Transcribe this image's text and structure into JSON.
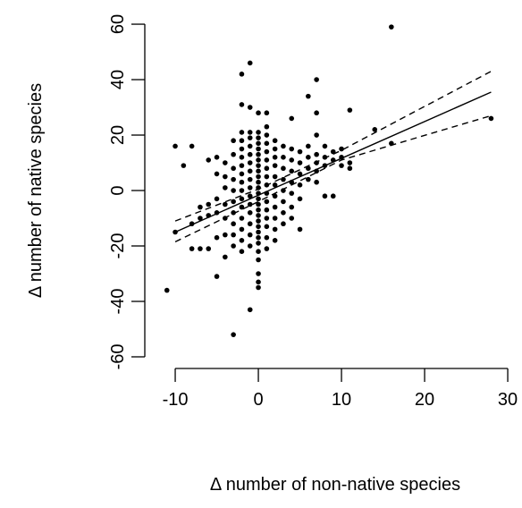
{
  "chart_data": {
    "type": "scatter",
    "xlabel": "Δ number of non-native species",
    "ylabel": "Δ number of native species",
    "xlim": [
      -13.66,
      31.5
    ],
    "ylim": [
      -64.2,
      65.5
    ],
    "xticks": [
      -10,
      0,
      10,
      20,
      30
    ],
    "yticks": [
      -60,
      -40,
      -20,
      0,
      20,
      40,
      60
    ],
    "color": "#000000",
    "x": [
      0,
      0,
      0,
      0,
      0,
      0,
      0,
      0,
      0,
      0,
      0,
      0,
      0,
      0,
      0,
      0,
      0,
      0,
      0,
      0,
      0,
      0,
      0,
      0,
      0,
      0,
      0,
      1,
      1,
      1,
      1,
      1,
      1,
      1,
      1,
      1,
      1,
      1,
      1,
      1,
      1,
      1,
      1,
      -1,
      -1,
      -1,
      -1,
      -1,
      -1,
      -1,
      -1,
      -1,
      -1,
      -1,
      -1,
      -1,
      -1,
      -1,
      -1,
      -1,
      2,
      2,
      2,
      2,
      2,
      2,
      2,
      2,
      2,
      2,
      2,
      -2,
      -2,
      -2,
      -2,
      -2,
      -2,
      -2,
      -2,
      -2,
      -2,
      -2,
      -2,
      -2,
      -2,
      -2,
      -2,
      3,
      3,
      3,
      3,
      3,
      3,
      3,
      3,
      -3,
      -3,
      -3,
      -3,
      -3,
      -3,
      -3,
      -3,
      -3,
      -3,
      -3,
      4,
      4,
      4,
      4,
      4,
      4,
      4,
      4,
      -4,
      -4,
      -4,
      -4,
      -4,
      -4,
      -4,
      5,
      5,
      5,
      5,
      5,
      5,
      -5,
      -5,
      -5,
      -5,
      -5,
      -5,
      6,
      6,
      6,
      6,
      6,
      -6,
      -6,
      -6,
      -6,
      7,
      7,
      7,
      7,
      7,
      7,
      7,
      -7,
      -7,
      -7,
      8,
      8,
      8,
      8,
      -8,
      -8,
      -8,
      9,
      9,
      9,
      -9,
      10,
      10,
      10,
      -10,
      -10,
      11,
      11,
      11,
      -11,
      14,
      16,
      16,
      28
    ],
    "values": [
      -25,
      -22,
      -19,
      -17,
      -15,
      -13,
      -11,
      -9,
      -7,
      -5,
      -3,
      -1,
      1,
      3,
      5,
      7,
      9,
      11,
      13,
      15,
      17,
      19,
      21,
      -30,
      -33,
      -35,
      28,
      -21,
      -17,
      -13,
      -10,
      -7,
      -4,
      -1,
      2,
      5,
      8,
      11,
      14,
      17,
      20,
      23,
      28,
      -20,
      -16,
      -12,
      -8,
      -5,
      -2,
      1,
      4,
      7,
      10,
      13,
      16,
      19,
      21,
      30,
      46,
      -43,
      -18,
      -14,
      -10,
      -6,
      -2,
      2,
      5,
      9,
      12,
      15,
      18,
      -22,
      -18,
      -14,
      -10,
      -6,
      -3,
      0,
      3,
      6,
      9,
      12,
      15,
      18,
      21,
      31,
      42,
      -12,
      -8,
      -4,
      0,
      4,
      8,
      12,
      16,
      -20,
      -16,
      -12,
      -8,
      -4,
      0,
      4,
      8,
      13,
      18,
      -52,
      -10,
      -6,
      -1,
      3,
      7,
      11,
      15,
      26,
      -24,
      -16,
      -10,
      -5,
      1,
      5,
      10,
      -14,
      -3,
      2,
      6,
      10,
      14,
      -31,
      -17,
      -8,
      -3,
      6,
      12,
      4,
      8,
      12,
      16,
      34,
      -21,
      -9,
      -5,
      11,
      3,
      7,
      10,
      13,
      20,
      28,
      40,
      -21,
      -10,
      -6,
      -2,
      9,
      12,
      16,
      -21,
      -12,
      16,
      -2,
      11,
      14,
      9,
      9,
      12,
      15,
      -15,
      16,
      8,
      10,
      29,
      -36,
      22,
      17,
      59,
      26
    ],
    "lines": [
      {
        "x": [
          -10,
          0,
          10,
          28
        ],
        "values": [
          -15,
          -1.7,
          11.6,
          35.5
        ],
        "linestyle": "solid"
      },
      {
        "x": [
          -10,
          0,
          10,
          28
        ],
        "values": [
          -11,
          0.5,
          14.5,
          43
        ],
        "linestyle": "dashed"
      },
      {
        "x": [
          -10,
          0,
          10,
          28
        ],
        "values": [
          -18.5,
          -4,
          11,
          27
        ],
        "linestyle": "dashed"
      }
    ]
  }
}
